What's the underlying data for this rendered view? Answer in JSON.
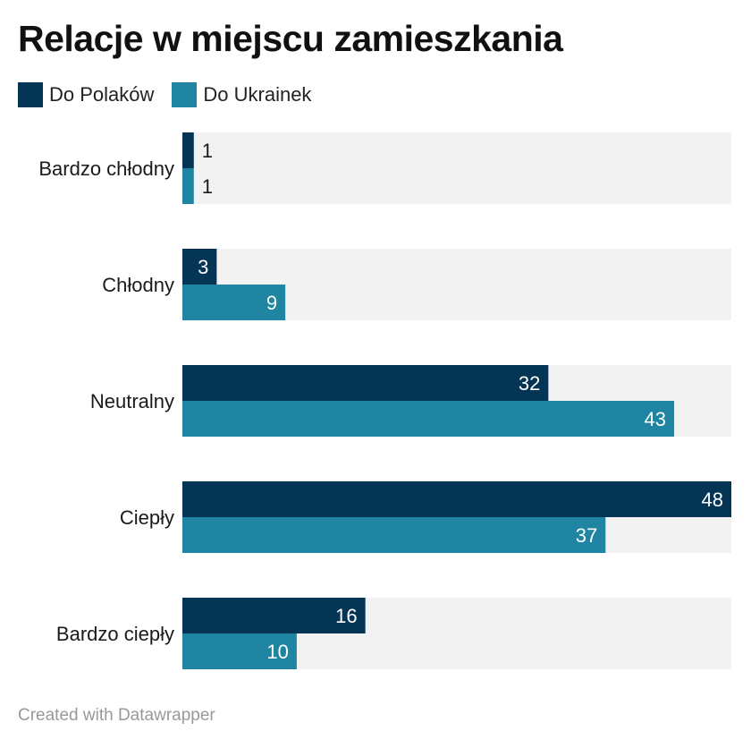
{
  "chart_data": {
    "type": "bar",
    "orientation": "horizontal",
    "title": "Relacje w miejscu zamieszkania",
    "categories": [
      "Bardzo chłodny",
      "Chłodny",
      "Neutralny",
      "Ciepły",
      "Bardzo ciepły"
    ],
    "series": [
      {
        "name": "Do Polaków",
        "color": "#043555",
        "values": [
          1,
          3,
          32,
          48,
          16
        ]
      },
      {
        "name": "Do Ukrainek",
        "color": "#1f85a3",
        "values": [
          1,
          9,
          43,
          37,
          10
        ]
      }
    ],
    "xlim": [
      0,
      48
    ],
    "grid": false,
    "legend_position": "top-left",
    "background_track_color": "#f2f2f2"
  },
  "footer": "Created with Datawrapper"
}
